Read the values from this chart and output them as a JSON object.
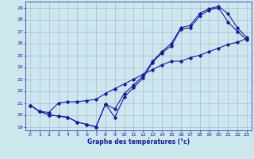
{
  "xlabel": "Graphe des températures (°c)",
  "bg_color": "#cce8ee",
  "grid_color": "#aaaacc",
  "line_color": "#1a1a99",
  "ylim": [
    18.7,
    29.5
  ],
  "xlim": [
    -0.5,
    23.5
  ],
  "yticks": [
    19,
    20,
    21,
    22,
    23,
    24,
    25,
    26,
    27,
    28,
    29
  ],
  "xticks": [
    0,
    1,
    2,
    3,
    4,
    5,
    6,
    7,
    8,
    9,
    10,
    11,
    12,
    13,
    14,
    15,
    16,
    17,
    18,
    19,
    20,
    21,
    22,
    23
  ],
  "series1_x": [
    0,
    1,
    2,
    3,
    4,
    5,
    6,
    7,
    8,
    9,
    10,
    11,
    12,
    13,
    14,
    15,
    16,
    17,
    18,
    19,
    20,
    21,
    22,
    23
  ],
  "series1_y": [
    20.8,
    20.3,
    20.0,
    19.9,
    19.8,
    19.4,
    19.2,
    19.0,
    20.9,
    19.8,
    21.5,
    22.3,
    23.1,
    24.4,
    25.2,
    25.8,
    27.2,
    27.3,
    28.3,
    28.8,
    29.0,
    27.8,
    27.0,
    26.3
  ],
  "series2_x": [
    0,
    1,
    2,
    3,
    4,
    5,
    6,
    7,
    8,
    9,
    10,
    11,
    12,
    13,
    14,
    15,
    16,
    17,
    18,
    19,
    20,
    21,
    22,
    23
  ],
  "series2_y": [
    20.8,
    20.3,
    20.0,
    19.9,
    19.8,
    19.4,
    19.2,
    19.0,
    20.9,
    20.5,
    21.8,
    22.5,
    23.3,
    24.5,
    25.3,
    26.0,
    27.3,
    27.5,
    28.5,
    28.9,
    29.1,
    28.5,
    27.3,
    26.5
  ],
  "series3_x": [
    0,
    1,
    2,
    3,
    4,
    5,
    6,
    7,
    8,
    9,
    10,
    11,
    12,
    13,
    14,
    15,
    16,
    17,
    18,
    19,
    20,
    21,
    22,
    23
  ],
  "series3_y": [
    20.8,
    20.3,
    20.2,
    21.0,
    21.1,
    21.1,
    21.2,
    21.3,
    21.8,
    22.2,
    22.6,
    23.0,
    23.4,
    23.8,
    24.2,
    24.5,
    24.5,
    24.8,
    25.0,
    25.3,
    25.6,
    25.9,
    26.1,
    26.4
  ]
}
